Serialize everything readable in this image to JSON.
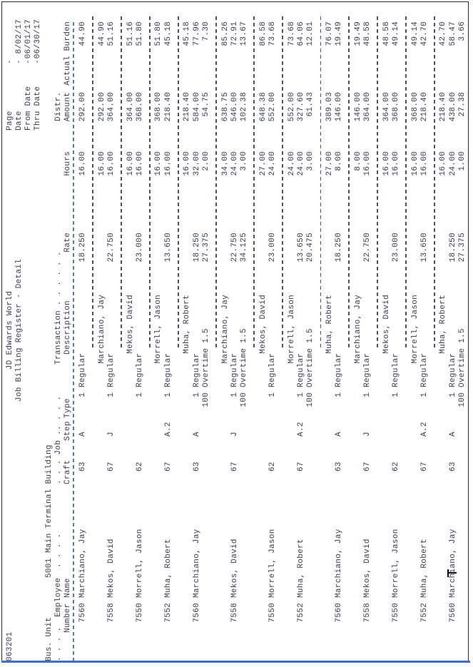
{
  "window": {
    "frame_color": "#2a2a2a",
    "bottom_accent_color": "#3f6ecb",
    "background": "#ffffff"
  },
  "report": {
    "id": "063201",
    "title": "JD Edwards World",
    "subtitle": "Job Billing Register - Detail",
    "page_label": "Page",
    "page_dash": "-",
    "page_value": "",
    "date_label": "Date",
    "date_value": "8/02/17",
    "from_label": "From Date",
    "from_value": "06/01/17",
    "thru_label": "Thru Date",
    "thru_value": "06/30/17",
    "rule_color": "#4d7cc2",
    "separator_color": "#52525e",
    "text_color": "#3a3a52"
  },
  "business_unit": {
    "label": "Bus. Unit",
    "number": "5001",
    "name": "Main Terminal Building"
  },
  "columns": {
    "dots_employee": ". . . .  Employee  . . . .",
    "dots_job": ". . . Job .. . . .",
    "dots_transaction": "Transaction . . . . . .",
    "distr": "Distr.",
    "number": "Number",
    "name": "Name",
    "craft": "Craft",
    "step": "Step",
    "type": "Type",
    "description": "Description",
    "rate": "Rate",
    "hours": "Hours",
    "amount": "Amount",
    "actual_burden": "Actual Burden"
  },
  "groups": [
    {
      "number": "7560",
      "name": "Marchiano, Jay",
      "craft": "63",
      "step": "A",
      "total": null,
      "lines": [
        {
          "type": "1",
          "desc": "Regular",
          "rate": "18.250",
          "hours": "16.00",
          "amount": "292.00",
          "burden": "44.90"
        }
      ]
    },
    {
      "number": "7558",
      "name": "Mekos, David",
      "craft": "67",
      "step": "J",
      "total": {
        "name": "Marchiano, Jay",
        "hours": "16.00",
        "amount": "292.00",
        "burden": "44.90"
      },
      "lines": [
        {
          "type": "1",
          "desc": "Regular",
          "rate": "22.750",
          "hours": "16.00",
          "amount": "364.00",
          "burden": "51.16"
        }
      ]
    },
    {
      "number": "7550",
      "name": "Morrell, Jason",
      "craft": "62",
      "step": "",
      "total": {
        "name": "Mekos, David",
        "hours": "16.00",
        "amount": "364.00",
        "burden": "51.16"
      },
      "lines": [
        {
          "type": "1",
          "desc": "Regular",
          "rate": "23.000",
          "hours": "16.00",
          "amount": "368.00",
          "burden": "51.80"
        }
      ]
    },
    {
      "number": "7552",
      "name": "Muha, Robert",
      "craft": "67",
      "step": "A.2",
      "total": {
        "name": "Morrell, Jason",
        "hours": "16.00",
        "amount": "368.00",
        "burden": "51.80"
      },
      "lines": [
        {
          "type": "1",
          "desc": "Regular",
          "rate": "13.650",
          "hours": "16.00",
          "amount": "218.40",
          "burden": "45.18"
        }
      ]
    },
    {
      "number": "7560",
      "name": "Marchiano, Jay",
      "craft": "63",
      "step": "A",
      "total": {
        "name": "Muha, Robert",
        "hours": "16.00",
        "amount": "218.40",
        "burden": "45.18"
      },
      "lines": [
        {
          "type": "1",
          "desc": "Regular",
          "rate": "18.250",
          "hours": "32.00",
          "amount": "584.00",
          "burden": "77.96"
        },
        {
          "type": "100",
          "desc": "Overtime 1.5",
          "rate": "27.375",
          "hours": "2.00",
          "amount": "54.75",
          "burden": "7.30"
        }
      ]
    },
    {
      "number": "7558",
      "name": "Mekos, David",
      "craft": "67",
      "step": "J",
      "total": {
        "name": "Marchiano, Jay",
        "hours": "34.00",
        "amount": "638.75",
        "burden": "85.26"
      },
      "lines": [
        {
          "type": "1",
          "desc": "Regular",
          "rate": "22.750",
          "hours": "24.00",
          "amount": "546.00",
          "burden": "72.91"
        },
        {
          "type": "100",
          "desc": "Overtime 1.5",
          "rate": "34.125",
          "hours": "3.00",
          "amount": "102.38",
          "burden": "13.67"
        }
      ]
    },
    {
      "number": "7550",
      "name": "Morrell, Jason",
      "craft": "62",
      "step": "",
      "total": {
        "name": "Mekos, David",
        "hours": "27.00",
        "amount": "648.38",
        "burden": "86.58"
      },
      "lines": [
        {
          "type": "1",
          "desc": "Regular",
          "rate": "23.000",
          "hours": "24.00",
          "amount": "552.00",
          "burden": "73.68"
        }
      ]
    },
    {
      "number": "7552",
      "name": "Muha, Robert",
      "craft": "67",
      "step": "A.2",
      "total": {
        "name": "Morrell, Jason",
        "hours": "24.00",
        "amount": "552.00",
        "burden": "73.68"
      },
      "lines": [
        {
          "type": "1",
          "desc": "Regular",
          "rate": "13.650",
          "hours": "24.00",
          "amount": "327.60",
          "burden": "64.06"
        },
        {
          "type": "100",
          "desc": "Overtime 1.5",
          "rate": "20.475",
          "hours": "3.00",
          "amount": "61.43",
          "burden": "12.01"
        }
      ]
    },
    {
      "number": "7560",
      "name": "Marchiano, Jay",
      "craft": "63",
      "step": "A",
      "total": {
        "name": "Muha, Robert",
        "hours": "27.00",
        "amount": "389.03",
        "burden": "76.07"
      },
      "lines": [
        {
          "type": "1",
          "desc": "Regular",
          "rate": "18.250",
          "hours": "8.00",
          "amount": "146.00",
          "burden": "19.49"
        }
      ]
    },
    {
      "number": "7558",
      "name": "Mekos, David",
      "craft": "67",
      "step": "J",
      "total": {
        "name": "Marchiano, Jay",
        "hours": "8.00",
        "amount": "146.00",
        "burden": "19.49"
      },
      "lines": [
        {
          "type": "1",
          "desc": "Regular",
          "rate": "22.750",
          "hours": "16.00",
          "amount": "364.00",
          "burden": "48.58"
        }
      ]
    },
    {
      "number": "7550",
      "name": "Morrell, Jason",
      "craft": "62",
      "step": "",
      "total": {
        "name": "Mekos, David",
        "hours": "16.00",
        "amount": "364.00",
        "burden": "48.58"
      },
      "lines": [
        {
          "type": "1",
          "desc": "Regular",
          "rate": "23.000",
          "hours": "16.00",
          "amount": "368.00",
          "burden": "49.14"
        }
      ]
    },
    {
      "number": "7552",
      "name": "Muha, Robert",
      "craft": "67",
      "step": "A.2",
      "total": {
        "name": "Morrell, Jason",
        "hours": "16.00",
        "amount": "368.00",
        "burden": "49.14"
      },
      "lines": [
        {
          "type": "1",
          "desc": "Regular",
          "rate": "13.650",
          "hours": "16.00",
          "amount": "218.40",
          "burden": "42.70"
        }
      ]
    },
    {
      "number": "7560",
      "name": "Marchiano, Jay",
      "craft": "63",
      "step": "A",
      "total": {
        "name": "Muha, Robert",
        "hours": "16.00",
        "amount": "218.40",
        "burden": "42.70"
      },
      "lines": [
        {
          "type": "1",
          "desc": "Regular",
          "rate": "18.250",
          "hours": "24.00",
          "amount": "438.00",
          "burden": "58.47"
        },
        {
          "type": "100",
          "desc": "Overtime 1.5",
          "rate": "27.375",
          "hours": "1.00",
          "amount": "27.38",
          "burden": "3.66"
        }
      ]
    }
  ],
  "cursor": {
    "visible": true,
    "in_name": "Marchiano, Jay",
    "after_chars": "March"
  }
}
